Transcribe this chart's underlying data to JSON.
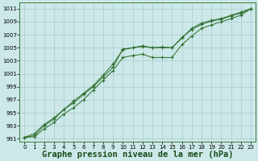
{
  "background_color": "#cce8e8",
  "grid_color": "#aacccc",
  "line_color": "#2d6e2d",
  "marker_color": "#2d6e2d",
  "xlabel": "Graphe pression niveau de la mer (hPa)",
  "xlabel_fontsize": 7.5,
  "ylim": [
    990.5,
    1012
  ],
  "yticks": [
    991,
    993,
    995,
    997,
    999,
    1001,
    1003,
    1005,
    1007,
    1009,
    1011
  ],
  "xlim": [
    -0.5,
    23.5
  ],
  "xticks": [
    0,
    1,
    2,
    3,
    4,
    5,
    6,
    7,
    8,
    9,
    10,
    11,
    12,
    13,
    14,
    15,
    16,
    17,
    18,
    19,
    20,
    21,
    22,
    23
  ],
  "line1": [
    991.2,
    991.8,
    993.2,
    994.2,
    995.5,
    996.5,
    997.8,
    999.0,
    1000.5,
    1002.0,
    1004.8,
    1005.0,
    1005.3,
    1005.0,
    1005.1,
    1005.0,
    1006.5,
    1008.0,
    1008.8,
    1009.2,
    1009.5,
    1010.0,
    1010.5,
    1011.0
  ],
  "line2": [
    991.2,
    991.5,
    993.0,
    994.0,
    995.5,
    996.8,
    998.0,
    999.2,
    1000.8,
    1002.5,
    1004.7,
    1005.0,
    1005.2,
    1005.0,
    1005.0,
    1005.0,
    1006.6,
    1007.8,
    1008.6,
    1009.1,
    1009.4,
    1009.9,
    1010.3,
    1011.0
  ],
  "line3": [
    991.2,
    991.3,
    992.5,
    993.5,
    994.8,
    995.8,
    997.0,
    998.5,
    1000.0,
    1001.5,
    1003.5,
    1003.8,
    1004.0,
    1003.5,
    1003.5,
    1003.5,
    1005.5,
    1006.8,
    1008.0,
    1008.5,
    1009.0,
    1009.5,
    1010.0,
    1011.0
  ]
}
